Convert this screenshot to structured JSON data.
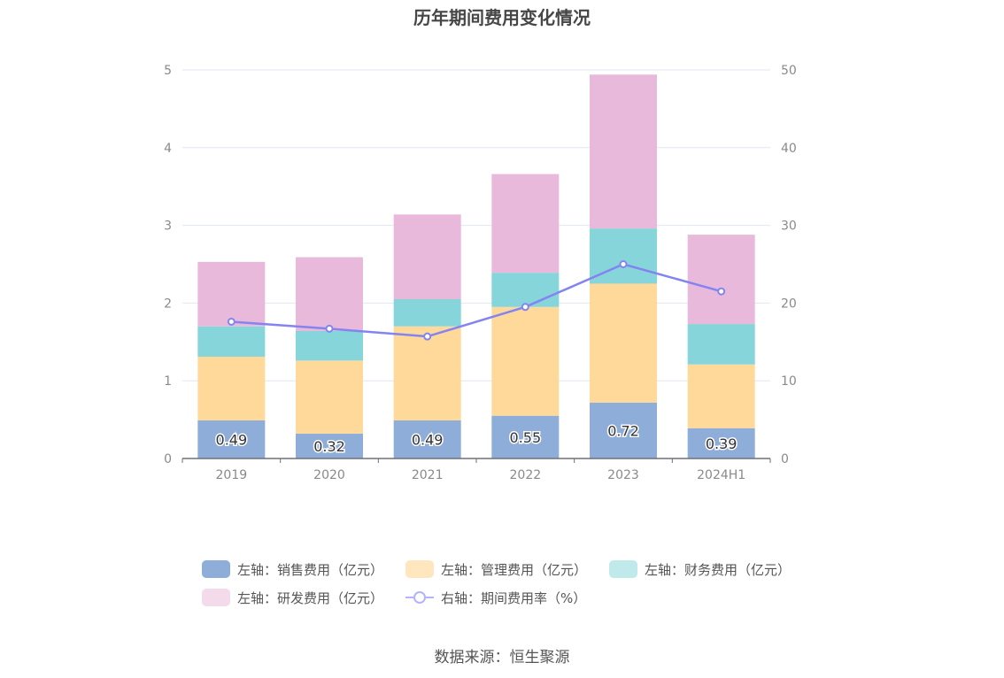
{
  "title": "历年期间费用变化情况",
  "source": "数据来源：恒生聚源",
  "colors": {
    "sales": "#8eadd9",
    "admin": "#ffd99a",
    "finance": "#86d5da",
    "rd": "#e8b9db",
    "rate": "#8484f0",
    "rate_legend": "#b3b3ff",
    "grid": "#e0e6f1",
    "axis": "#6e7079",
    "tick_text": "#8a8a8a"
  },
  "legend": [
    {
      "key": "sales",
      "label": "左轴：销售费用（亿元）",
      "swatch": "#8eadd9"
    },
    {
      "key": "admin",
      "label": "左轴：管理费用（亿元）",
      "swatch": "#ffe6bf"
    },
    {
      "key": "finance",
      "label": "左轴：财务费用（亿元）",
      "swatch": "#c0e9ec"
    },
    {
      "key": "rd",
      "label": "左轴：研发费用（亿元）",
      "swatch": "#f3dbec"
    },
    {
      "key": "rate",
      "label": "右轴：期间费用率（%）",
      "swatch": "#b3b3ff"
    }
  ],
  "chart_data": {
    "type": "bar",
    "stacked": true,
    "title": "历年期间费用变化情况",
    "categories": [
      "2019",
      "2020",
      "2021",
      "2022",
      "2023",
      "2024H1"
    ],
    "y_left": {
      "ylim": [
        0,
        5
      ],
      "ticks": [
        "0",
        "1",
        "2",
        "3",
        "4",
        "5"
      ]
    },
    "y_right": {
      "ylim": [
        0,
        50
      ],
      "ticks": [
        "0",
        "10",
        "20",
        "30",
        "40",
        "50"
      ]
    },
    "grid": true,
    "legend_position": "bottom",
    "series": [
      {
        "name": "左轴：销售费用（亿元）",
        "axis": "left",
        "type": "bar",
        "values": [
          0.49,
          0.32,
          0.49,
          0.55,
          0.72,
          0.39
        ],
        "labels": [
          "0.49",
          "0.32",
          "0.49",
          "0.55",
          "0.72",
          "0.39"
        ]
      },
      {
        "name": "左轴：管理费用（亿元）",
        "axis": "left",
        "type": "bar",
        "values": [
          0.82,
          0.94,
          1.21,
          1.4,
          1.53,
          0.82
        ]
      },
      {
        "name": "左轴：财务费用（亿元）",
        "axis": "left",
        "type": "bar",
        "values": [
          0.39,
          0.38,
          0.35,
          0.44,
          0.71,
          0.52
        ]
      },
      {
        "name": "左轴：研发费用（亿元）",
        "axis": "left",
        "type": "bar",
        "values": [
          0.83,
          0.95,
          1.09,
          1.27,
          1.98,
          1.15
        ]
      },
      {
        "name": "右轴：期间费用率（%）",
        "axis": "right",
        "type": "line",
        "values": [
          17.6,
          16.7,
          15.7,
          19.5,
          25.0,
          21.5
        ]
      }
    ]
  }
}
